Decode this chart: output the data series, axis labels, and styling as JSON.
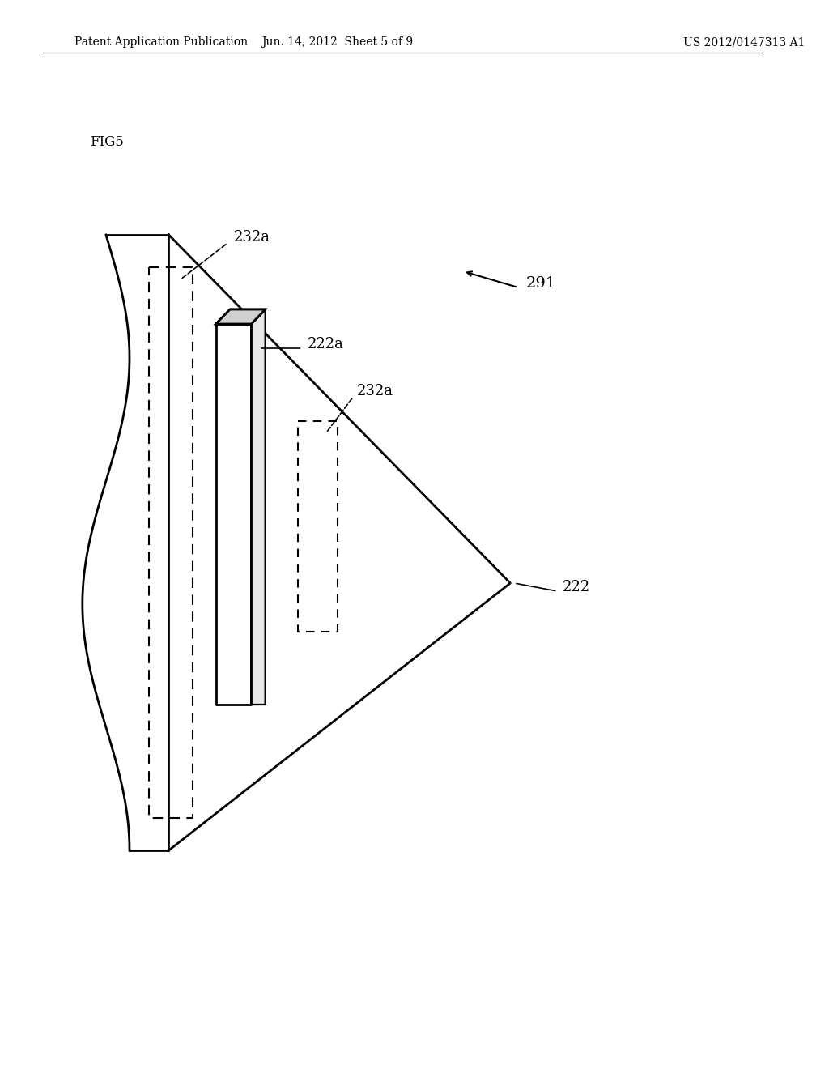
{
  "background_color": "#ffffff",
  "header_left": "Patent Application Publication",
  "header_center": "Jun. 14, 2012  Sheet 5 of 9",
  "header_right": "US 2012/0147313 A1",
  "fig_label": "FIG5",
  "labels": {
    "232a_top": "232a",
    "222a": "222a",
    "232a_mid": "232a",
    "222": "222",
    "291": "291"
  }
}
